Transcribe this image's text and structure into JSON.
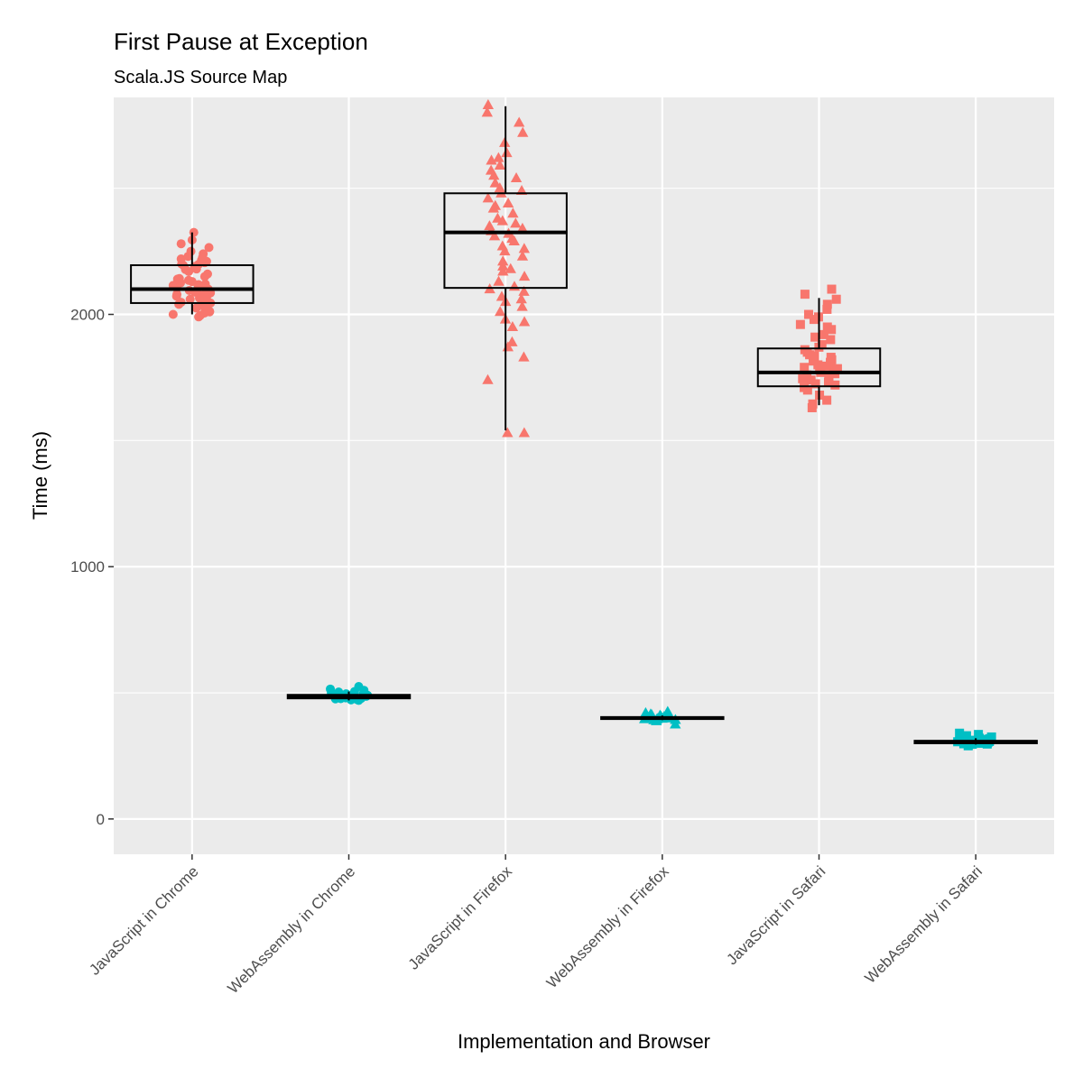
{
  "chart_data": {
    "type": "box",
    "title": "First Pause at Exception",
    "subtitle": "Scala.JS Source Map",
    "xlabel": "Implementation and Browser",
    "ylabel": "Time (ms)",
    "ylim": [
      -140,
      2860
    ],
    "y_ticks": [
      0,
      1000,
      2000
    ],
    "y_minor_ticks": [
      500,
      1500,
      2500
    ],
    "grid": true,
    "legend": "none",
    "colors": {
      "javascript": "#F8766D",
      "webassembly": "#00BFC4",
      "panel": "#EBEBEB",
      "grid": "#FFFFFF",
      "box": "#000000"
    },
    "categories": [
      "JavaScript in Chrome",
      "WebAssembly in Chrome",
      "JavaScript in Firefox",
      "WebAssembly in Firefox",
      "JavaScript in Safari",
      "WebAssembly in Safari"
    ],
    "series": [
      {
        "name": "JavaScript in Chrome",
        "group": "javascript",
        "shape": "circle",
        "box": {
          "min": 2000,
          "q1": 2045,
          "median": 2100,
          "q3": 2195,
          "max": 2325
        },
        "points": [
          2000,
          1995,
          2005,
          2010,
          2015,
          2020,
          2025,
          2030,
          2035,
          2040,
          2045,
          2050,
          2055,
          2060,
          2065,
          2070,
          2075,
          2080,
          2085,
          2090,
          2095,
          2100,
          2105,
          2110,
          2115,
          2120,
          2125,
          2130,
          2135,
          2140,
          2150,
          2160,
          2170,
          2180,
          2190,
          2195,
          2200,
          2205,
          2210,
          2215,
          2220,
          2225,
          2230,
          2240,
          2250,
          2265,
          2280,
          2295,
          2325,
          1990,
          2012,
          2048,
          2072,
          2088,
          2118,
          2142,
          2178,
          2198,
          2208,
          2222
        ]
      },
      {
        "name": "WebAssembly in Chrome",
        "group": "webassembly",
        "shape": "circle",
        "box": {
          "min": 470,
          "q1": 478,
          "median": 485,
          "q3": 492,
          "max": 505
        },
        "points": [
          470,
          472,
          474,
          476,
          478,
          480,
          482,
          484,
          485,
          486,
          488,
          490,
          492,
          495,
          498,
          500,
          503,
          505,
          510,
          515,
          525,
          480,
          487,
          493,
          477,
          483,
          489,
          496
        ]
      },
      {
        "name": "JavaScript in Firefox",
        "group": "javascript",
        "shape": "triangle",
        "box": {
          "min": 1540,
          "q1": 2105,
          "median": 2325,
          "q3": 2480,
          "max": 2825
        },
        "points": [
          1530,
          1530,
          1740,
          1830,
          1870,
          1890,
          1950,
          1970,
          2010,
          2030,
          2050,
          2070,
          2090,
          2100,
          2110,
          2130,
          2150,
          2170,
          2190,
          2210,
          2230,
          2250,
          2270,
          2290,
          2310,
          2320,
          2330,
          2340,
          2350,
          2360,
          2380,
          2400,
          2420,
          2440,
          2460,
          2480,
          2500,
          2520,
          2550,
          2570,
          2590,
          2610,
          2640,
          2680,
          2720,
          2760,
          2800,
          2830,
          1980,
          2060,
          2180,
          2260,
          2300,
          2370,
          2430,
          2490,
          2540,
          2620
        ]
      },
      {
        "name": "WebAssembly in Firefox",
        "group": "webassembly",
        "shape": "triangle",
        "box": {
          "min": 392,
          "q1": 396,
          "median": 400,
          "q3": 404,
          "max": 410
        },
        "points": [
          375,
          388,
          392,
          394,
          396,
          398,
          400,
          401,
          402,
          403,
          404,
          406,
          408,
          410,
          412,
          415,
          420,
          425,
          397,
          399,
          405,
          393
        ]
      },
      {
        "name": "JavaScript in Safari",
        "group": "javascript",
        "shape": "square",
        "box": {
          "min": 1640,
          "q1": 1715,
          "median": 1770,
          "q3": 1865,
          "max": 2065
        },
        "points": [
          1630,
          1645,
          1660,
          1680,
          1700,
          1710,
          1720,
          1730,
          1740,
          1750,
          1760,
          1765,
          1770,
          1775,
          1780,
          1790,
          1800,
          1810,
          1820,
          1830,
          1840,
          1850,
          1860,
          1880,
          1900,
          1920,
          1940,
          1960,
          1980,
          2000,
          2020,
          2040,
          2060,
          2080,
          2100,
          1725,
          1745,
          1755,
          1785,
          1795,
          1815,
          1835,
          1870,
          1910,
          1950,
          1990
        ]
      },
      {
        "name": "WebAssembly in Safari",
        "group": "webassembly",
        "shape": "square",
        "box": {
          "min": 295,
          "q1": 300,
          "median": 305,
          "q3": 310,
          "max": 320
        },
        "points": [
          290,
          294,
          296,
          298,
          300,
          302,
          304,
          305,
          306,
          308,
          310,
          312,
          315,
          318,
          320,
          325,
          330,
          335,
          340,
          303,
          307,
          309,
          297,
          301
        ]
      }
    ]
  }
}
